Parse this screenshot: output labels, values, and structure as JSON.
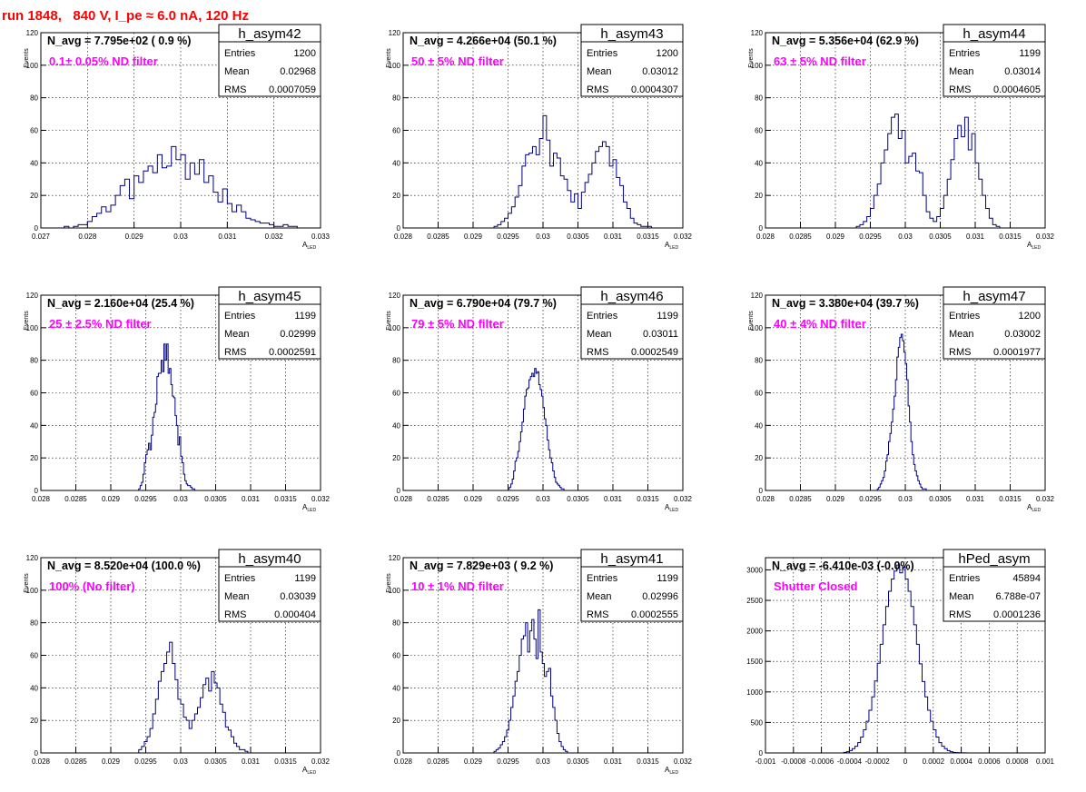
{
  "page_title": "run 1848,   840 V, I_pe ≈ 6.0 nA, 120 Hz",
  "colors": {
    "histogram": "#000080",
    "title": "#ff0000",
    "filter_label": "#ff00ff",
    "grid": "#000000",
    "axis": "#000000"
  },
  "stats_labels": {
    "entries": "Entries",
    "mean": "Mean",
    "rms": "RMS"
  },
  "chart_data": [
    {
      "type": "histogram",
      "name": "h_asym42",
      "navg": "N_avg = 7.795e+02 ( 0.9 %)",
      "filter": "0.1± 0.05% ND filter",
      "entries": "1200",
      "mean": "0.02968",
      "rms": "0.0007059",
      "ylabel": "Events",
      "xlabel": "A",
      "xlabel_sub": "LED",
      "xlim": [
        0.027,
        0.033
      ],
      "ylim": [
        0,
        120
      ],
      "grid": true,
      "yticks": [
        "0",
        "20",
        "40",
        "60",
        "80",
        "100",
        "120"
      ],
      "xtick_values": [
        0.027,
        0.028,
        0.029,
        0.03,
        0.031,
        0.032,
        0.033
      ],
      "xtick_labels": [
        "0.027",
        "0.028",
        "0.029",
        "0.03",
        "0.031",
        "0.032",
        "0.033"
      ],
      "bins": {
        "lo": 0.0275,
        "width": 0.0001,
        "counts": [
          1,
          0,
          1,
          2,
          2,
          4,
          7,
          9,
          13,
          10,
          14,
          20,
          26,
          30,
          18,
          32,
          28,
          35,
          38,
          34,
          45,
          37,
          38,
          50,
          42,
          45,
          30,
          40,
          33,
          42,
          28,
          32,
          22,
          16,
          24,
          15,
          10,
          14,
          10,
          6,
          5,
          4,
          3,
          3,
          2,
          1,
          1,
          2,
          1,
          1
        ]
      }
    },
    {
      "type": "histogram",
      "name": "h_asym43",
      "navg": "N_avg = 4.266e+04 (50.1 %)",
      "filter": "50 ± 5% ND filter",
      "entries": "1200",
      "mean": "0.03012",
      "rms": "0.0004307",
      "ylabel": "Events",
      "xlabel": "A",
      "xlabel_sub": "LED",
      "xlim": [
        0.028,
        0.032
      ],
      "ylim": [
        0,
        120
      ],
      "grid": true,
      "yticks": [
        "0",
        "20",
        "40",
        "60",
        "80",
        "100",
        "120"
      ],
      "xtick_values": [
        0.028,
        0.0285,
        0.029,
        0.0295,
        0.03,
        0.0305,
        0.031,
        0.0315,
        0.032
      ],
      "xtick_labels": [
        "0.028",
        "0.0285",
        "0.029",
        "0.0295",
        "0.03",
        "0.0305",
        "0.031",
        "0.0315",
        "0.032"
      ],
      "bins": {
        "lo": 0.0293,
        "width": 5e-05,
        "counts": [
          1,
          2,
          4,
          6,
          9,
          13,
          19,
          26,
          38,
          45,
          46,
          50,
          45,
          55,
          69,
          54,
          38,
          46,
          43,
          32,
          30,
          23,
          16,
          21,
          12,
          22,
          28,
          33,
          40,
          47,
          50,
          53,
          50,
          38,
          42,
          31,
          26,
          16,
          12,
          6,
          3,
          2,
          1,
          1,
          1
        ]
      }
    },
    {
      "type": "histogram",
      "name": "h_asym44",
      "navg": "N_avg = 5.356e+04 (62.9 %)",
      "filter": "63 ± 5% ND filter",
      "entries": "1199",
      "mean": "0.03014",
      "rms": "0.0004605",
      "ylabel": "Events",
      "xlabel": "A",
      "xlabel_sub": "LED",
      "xlim": [
        0.028,
        0.032
      ],
      "ylim": [
        0,
        120
      ],
      "grid": true,
      "yticks": [
        "0",
        "20",
        "40",
        "60",
        "80",
        "100",
        "120"
      ],
      "xtick_values": [
        0.028,
        0.0285,
        0.029,
        0.0295,
        0.03,
        0.0305,
        0.031,
        0.0315,
        0.032
      ],
      "xtick_labels": [
        "0.028",
        "0.0285",
        "0.029",
        "0.0295",
        "0.03",
        "0.0305",
        "0.031",
        "0.0315",
        "0.032"
      ],
      "bins": {
        "lo": 0.0293,
        "width": 5e-05,
        "counts": [
          1,
          2,
          4,
          7,
          12,
          20,
          27,
          40,
          48,
          58,
          68,
          70,
          55,
          60,
          40,
          44,
          46,
          35,
          34,
          20,
          10,
          6,
          4,
          7,
          12,
          20,
          30,
          42,
          55,
          63,
          56,
          68,
          48,
          58,
          40,
          30,
          20,
          12,
          6,
          2,
          1
        ]
      }
    },
    {
      "type": "histogram",
      "name": "h_asym45",
      "navg": "N_avg = 2.160e+04 (25.4 %)",
      "filter": "25 ± 2.5% ND filter",
      "entries": "1199",
      "mean": "0.02999",
      "rms": "0.0002591",
      "ylabel": "Events",
      "xlabel": "A",
      "xlabel_sub": "LED",
      "xlim": [
        0.028,
        0.032
      ],
      "ylim": [
        0,
        120
      ],
      "grid": true,
      "yticks": [
        "0",
        "20",
        "40",
        "60",
        "80",
        "100",
        "120"
      ],
      "xtick_values": [
        0.028,
        0.0285,
        0.029,
        0.0295,
        0.03,
        0.0305,
        0.031,
        0.0315,
        0.032
      ],
      "xtick_labels": [
        "0.028",
        "0.0285",
        "0.029",
        "0.0295",
        "0.03",
        "0.0305",
        "0.031",
        "0.0315",
        "0.032"
      ],
      "bins": {
        "lo": 0.0294,
        "width": 2e-05,
        "counts": [
          1,
          3,
          5,
          10,
          17,
          22,
          25,
          29,
          25,
          34,
          45,
          48,
          53,
          70,
          72,
          72,
          80,
          73,
          90,
          80,
          90,
          72,
          75,
          65,
          58,
          57,
          46,
          40,
          28,
          33,
          21,
          17,
          10,
          6,
          4,
          3,
          3,
          2,
          1,
          1
        ]
      }
    },
    {
      "type": "histogram",
      "name": "h_asym46",
      "navg": "N_avg = 6.790e+04 (79.7 %)",
      "filter": "79 ± 5% ND filter",
      "entries": "1199",
      "mean": "0.03011",
      "rms": "0.0002549",
      "ylabel": "Events",
      "xlabel": "A",
      "xlabel_sub": "LED",
      "xlim": [
        0.028,
        0.032
      ],
      "ylim": [
        0,
        120
      ],
      "grid": true,
      "yticks": [
        "0",
        "20",
        "40",
        "60",
        "80",
        "100",
        "120"
      ],
      "xtick_values": [
        0.028,
        0.0285,
        0.029,
        0.0295,
        0.03,
        0.0305,
        0.031,
        0.0315,
        0.032
      ],
      "xtick_labels": [
        "0.028",
        "0.0285",
        "0.029",
        "0.0295",
        "0.03",
        "0.0305",
        "0.031",
        "0.0315",
        "0.032"
      ],
      "bins": {
        "lo": 0.0295,
        "width": 2e-05,
        "counts": [
          1,
          2,
          4,
          7,
          12,
          18,
          20,
          24,
          30,
          36,
          42,
          50,
          58,
          62,
          63,
          68,
          70,
          72,
          70,
          75,
          72,
          73,
          65,
          62,
          58,
          51,
          44,
          40,
          31,
          25,
          20,
          17,
          12,
          8,
          5,
          4,
          3,
          2,
          1,
          1
        ]
      }
    },
    {
      "type": "histogram",
      "name": "h_asym47",
      "navg": "N_avg = 3.380e+04 (39.7 %)",
      "filter": "40 ± 4% ND filter",
      "entries": "1200",
      "mean": "0.03002",
      "rms": "0.0001977",
      "ylabel": "Events",
      "xlabel": "A",
      "xlabel_sub": "LED",
      "xlim": [
        0.028,
        0.032
      ],
      "ylim": [
        0,
        120
      ],
      "grid": true,
      "yticks": [
        "0",
        "20",
        "40",
        "60",
        "80",
        "100",
        "120"
      ],
      "xtick_values": [
        0.028,
        0.0285,
        0.029,
        0.0295,
        0.03,
        0.0305,
        0.031,
        0.0315,
        0.032
      ],
      "xtick_labels": [
        "0.028",
        "0.0285",
        "0.029",
        "0.0295",
        "0.03",
        "0.0305",
        "0.031",
        "0.0315",
        "0.032"
      ],
      "bins": {
        "lo": 0.0296,
        "width": 2e-05,
        "counts": [
          1,
          2,
          4,
          6,
          8,
          12,
          18,
          22,
          30,
          35,
          42,
          50,
          58,
          68,
          82,
          88,
          94,
          96,
          92,
          85,
          78,
          68,
          52,
          42,
          30,
          22,
          16,
          12,
          9,
          6,
          4,
          2,
          1,
          1,
          1
        ]
      }
    },
    {
      "type": "histogram",
      "name": "h_asym40",
      "navg": "N_avg = 8.520e+04 (100.0 %)",
      "filter": "100% (No filter)",
      "entries": "1199",
      "mean": "0.03039",
      "rms": "0.000404",
      "ylabel": "Events",
      "xlabel": "A",
      "xlabel_sub": "LED",
      "xlim": [
        0.028,
        0.032
      ],
      "ylim": [
        0,
        120
      ],
      "grid": true,
      "yticks": [
        "0",
        "20",
        "40",
        "60",
        "80",
        "100",
        "120"
      ],
      "xtick_values": [
        0.028,
        0.0285,
        0.029,
        0.0295,
        0.03,
        0.0305,
        0.031,
        0.0315,
        0.032
      ],
      "xtick_labels": [
        "0.028",
        "0.0285",
        "0.029",
        "0.0295",
        "0.03",
        "0.0305",
        "0.031",
        "0.0315",
        "0.032"
      ],
      "bins": {
        "lo": 0.0294,
        "width": 4e-05,
        "counts": [
          2,
          4,
          7,
          10,
          15,
          24,
          33,
          44,
          50,
          55,
          62,
          68,
          55,
          45,
          33,
          30,
          22,
          20,
          15,
          20,
          24,
          28,
          34,
          42,
          46,
          38,
          50,
          43,
          40,
          30,
          25,
          16,
          14,
          10,
          6,
          4,
          2,
          2,
          1
        ]
      }
    },
    {
      "type": "histogram",
      "name": "h_asym41",
      "navg": "N_avg = 7.829e+03 ( 9.2 %)",
      "filter": "10 ± 1% ND filter",
      "entries": "1199",
      "mean": "0.02996",
      "rms": "0.0002555",
      "ylabel": "Events",
      "xlabel": "A",
      "xlabel_sub": "LED",
      "xlim": [
        0.028,
        0.032
      ],
      "ylim": [
        0,
        120
      ],
      "grid": true,
      "yticks": [
        "0",
        "20",
        "40",
        "60",
        "80",
        "100",
        "120"
      ],
      "xtick_values": [
        0.028,
        0.0285,
        0.029,
        0.0295,
        0.03,
        0.0305,
        0.031,
        0.0315,
        0.032
      ],
      "xtick_labels": [
        "0.028",
        "0.0285",
        "0.029",
        "0.0295",
        "0.03",
        "0.0305",
        "0.031",
        "0.0315",
        "0.032"
      ],
      "bins": {
        "lo": 0.0293,
        "width": 3e-05,
        "counts": [
          1,
          2,
          3,
          5,
          7,
          10,
          14,
          20,
          28,
          35,
          44,
          50,
          60,
          70,
          72,
          80,
          62,
          75,
          82,
          70,
          58,
          88,
          62,
          55,
          47,
          50,
          52,
          35,
          28,
          20,
          12,
          7,
          4,
          2,
          1
        ]
      }
    },
    {
      "type": "histogram",
      "name": "hPed_asym",
      "navg": "N_avg = -6.410e-03 (-0.0%)",
      "filter": "Shutter Closed",
      "entries": "45894",
      "mean": "6.788e-07",
      "rms": "0.0001236",
      "ylabel": "",
      "xlabel": "",
      "xlabel_sub": "",
      "xlim": [
        -0.001,
        0.001
      ],
      "ylim": [
        0,
        3200
      ],
      "grid": true,
      "yticks": [
        "0",
        "500",
        "1000",
        "1500",
        "2000",
        "2500",
        "3000"
      ],
      "ytick_values": [
        0,
        500,
        1000,
        1500,
        2000,
        2500,
        3000
      ],
      "xtick_values": [
        -0.001,
        -0.0008,
        -0.0006,
        -0.0004,
        -0.0002,
        0,
        0.0002,
        0.0004,
        0.0006,
        0.0008,
        0.001
      ],
      "xtick_labels": [
        "-0.001",
        "-0.0008",
        "-0.0006",
        "-0.0004",
        "-0.0002",
        "0",
        "0.0002",
        "0.0004",
        "0.0006",
        "0.0008",
        "0.001"
      ],
      "bins": {
        "lo": -0.00044,
        "width": 2e-05,
        "counts": [
          10,
          20,
          40,
          70,
          110,
          170,
          260,
          380,
          520,
          700,
          920,
          1180,
          1470,
          1780,
          2100,
          2400,
          2650,
          2850,
          2980,
          3080,
          2950,
          3050,
          2850,
          2650,
          2400,
          2100,
          1780,
          1460,
          1170,
          920,
          700,
          520,
          380,
          260,
          170,
          110,
          70,
          40,
          20,
          10,
          5,
          3,
          2,
          1
        ]
      }
    }
  ]
}
